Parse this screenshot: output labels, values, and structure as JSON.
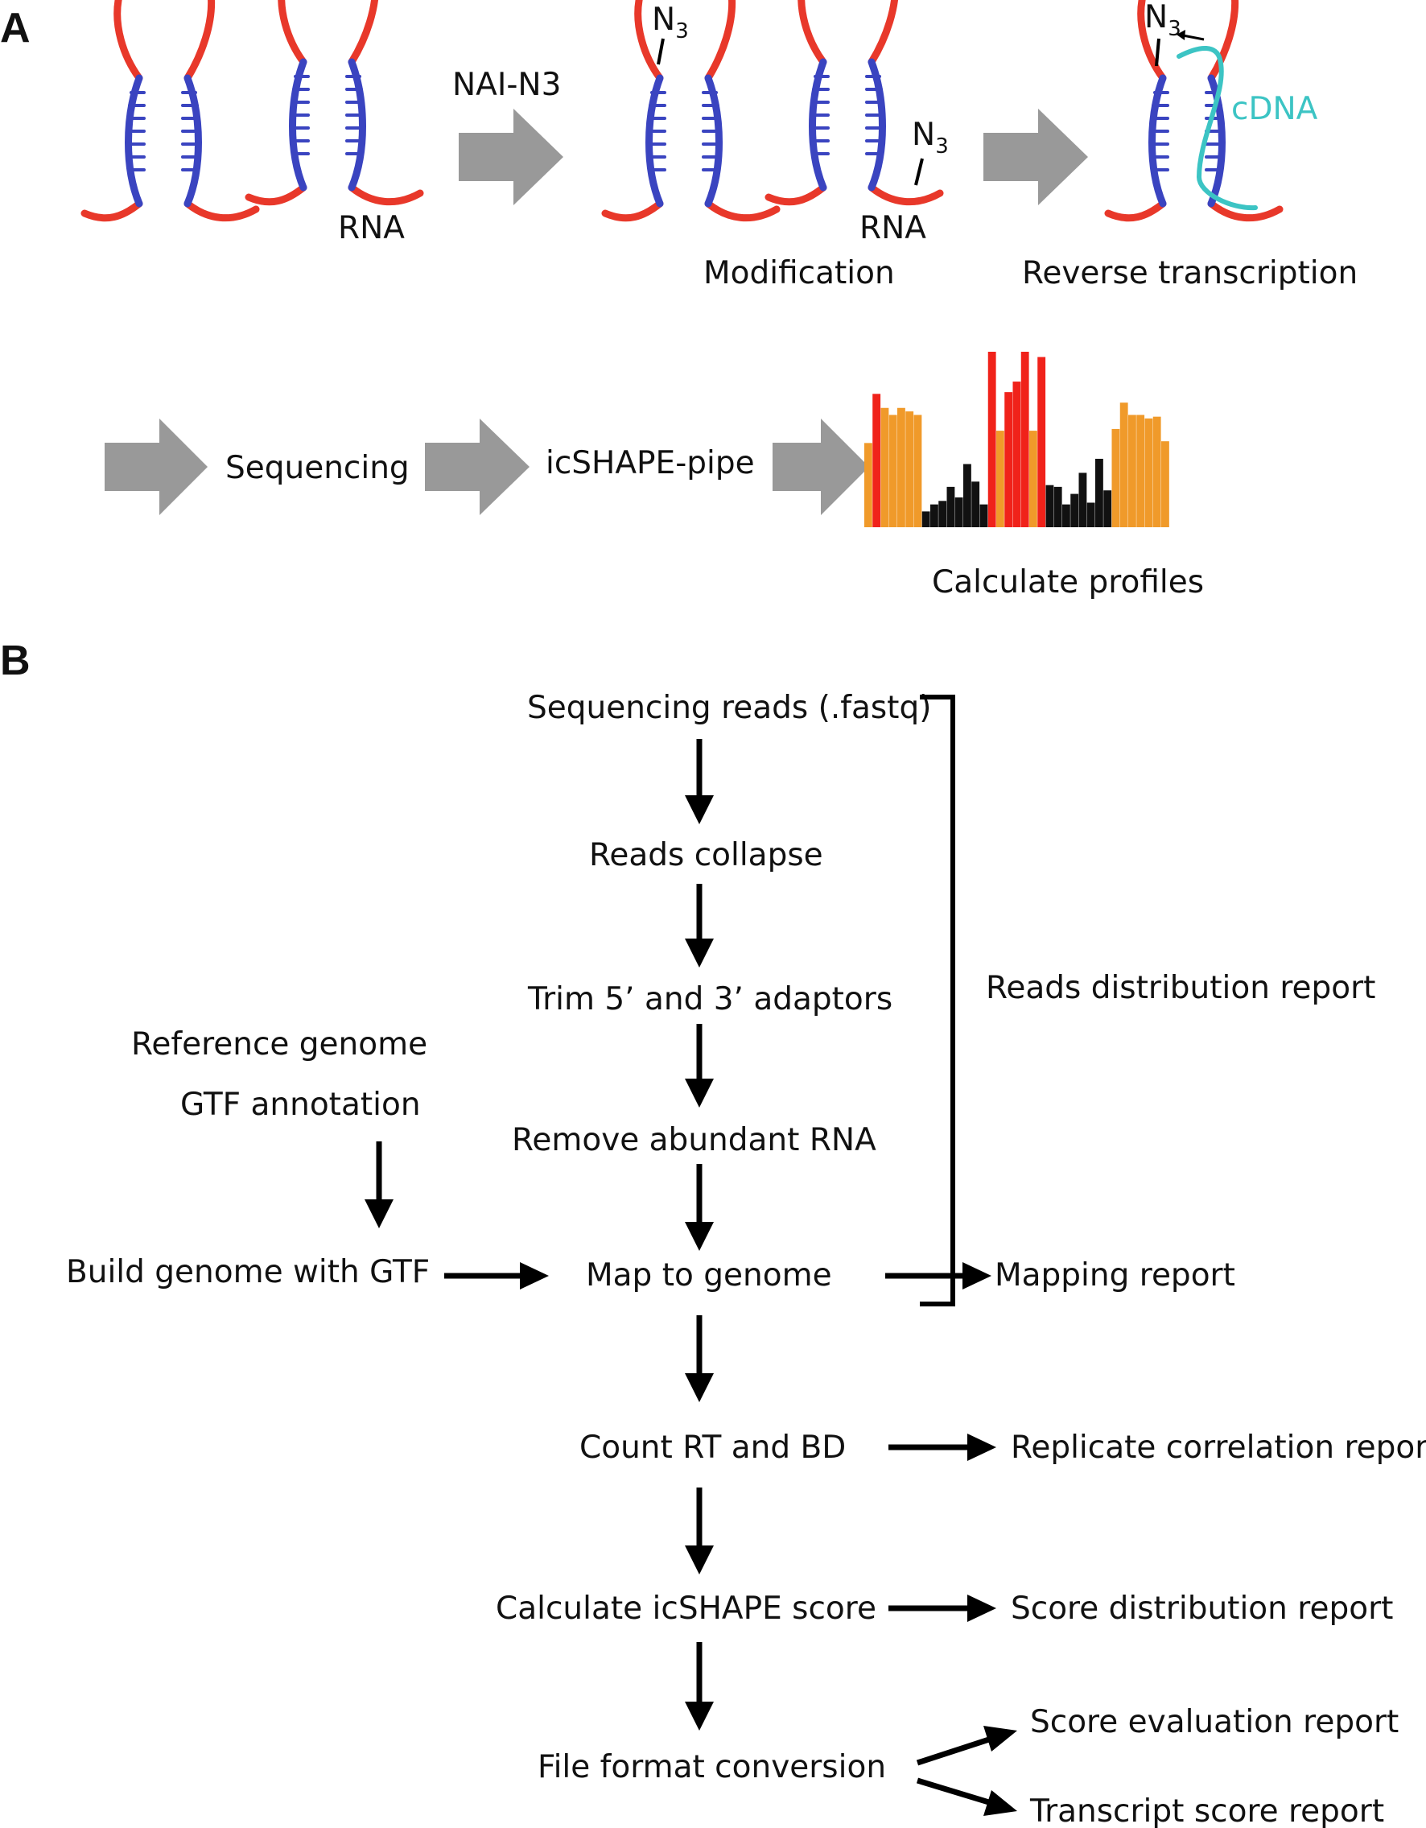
{
  "colors": {
    "rna_loop": "#e8382a",
    "rna_stem": "#3a44c0",
    "cdna": "#3cc4c4",
    "gray_arrow": "#999999",
    "bar_orange": "#f09a2a",
    "bar_red": "#f0221a",
    "bar_black": "#111111"
  },
  "panelA": {
    "letter": "A",
    "reagent": "NAI-N3",
    "rna_label_1": "RNA",
    "rna_label_2": "RNA",
    "n3_base": "N",
    "n3_sub": "3",
    "cdna": "cDNA",
    "step_modification": "Modification",
    "step_rt": "Reverse transcription",
    "step_sequencing": "Sequencing",
    "step_pipe": "icSHAPE-pipe",
    "step_profiles": "Calculate profiles",
    "profile_bars": [
      {
        "v": 0.48,
        "c": "o"
      },
      {
        "v": 0.76,
        "c": "r"
      },
      {
        "v": 0.68,
        "c": "o"
      },
      {
        "v": 0.64,
        "c": "o"
      },
      {
        "v": 0.68,
        "c": "o"
      },
      {
        "v": 0.66,
        "c": "o"
      },
      {
        "v": 0.64,
        "c": "o"
      },
      {
        "v": 0.09,
        "c": "k"
      },
      {
        "v": 0.13,
        "c": "k"
      },
      {
        "v": 0.15,
        "c": "k"
      },
      {
        "v": 0.23,
        "c": "k"
      },
      {
        "v": 0.17,
        "c": "k"
      },
      {
        "v": 0.36,
        "c": "k"
      },
      {
        "v": 0.26,
        "c": "k"
      },
      {
        "v": 0.13,
        "c": "k"
      },
      {
        "v": 1.0,
        "c": "r"
      },
      {
        "v": 0.55,
        "c": "o"
      },
      {
        "v": 0.77,
        "c": "r"
      },
      {
        "v": 0.83,
        "c": "r"
      },
      {
        "v": 1.0,
        "c": "r"
      },
      {
        "v": 0.55,
        "c": "o"
      },
      {
        "v": 0.97,
        "c": "r"
      },
      {
        "v": 0.24,
        "c": "k"
      },
      {
        "v": 0.23,
        "c": "k"
      },
      {
        "v": 0.13,
        "c": "k"
      },
      {
        "v": 0.19,
        "c": "k"
      },
      {
        "v": 0.31,
        "c": "k"
      },
      {
        "v": 0.14,
        "c": "k"
      },
      {
        "v": 0.39,
        "c": "k"
      },
      {
        "v": 0.21,
        "c": "k"
      },
      {
        "v": 0.56,
        "c": "o"
      },
      {
        "v": 0.71,
        "c": "o"
      },
      {
        "v": 0.64,
        "c": "o"
      },
      {
        "v": 0.64,
        "c": "o"
      },
      {
        "v": 0.62,
        "c": "o"
      },
      {
        "v": 0.63,
        "c": "o"
      },
      {
        "v": 0.49,
        "c": "o"
      }
    ]
  },
  "panelB": {
    "letter": "B",
    "reads": "Sequencing reads (.fastq)",
    "collapse": "Reads collapse",
    "trim": "Trim 5’ and 3’ adaptors",
    "remove": "Remove abundant RNA",
    "map": "Map to genome",
    "count": "Count RT and BD",
    "score": "Calculate icSHAPE score",
    "convert": "File format conversion",
    "ref_genome": "Reference genome",
    "gtf": "GTF annotation",
    "build": "Build genome with GTF",
    "reads_report": "Reads distribution report",
    "mapping_report": "Mapping report",
    "replicate_report": "Replicate correlation report",
    "score_dist_report": "Score distribution report",
    "score_eval_report": "Score evaluation report",
    "transcript_report": "Transcript score report"
  }
}
